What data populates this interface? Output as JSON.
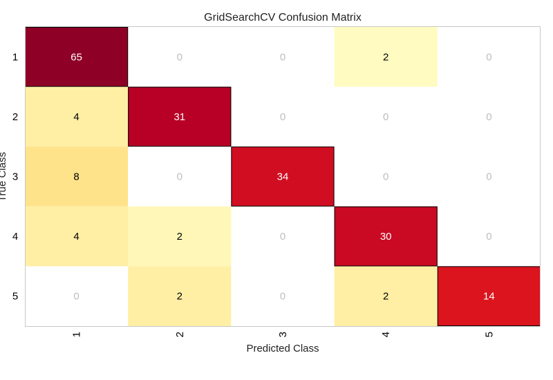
{
  "chart_data": {
    "type": "heatmap",
    "title": "GridSearchCV Confusion Matrix",
    "xlabel": "Predicted Class",
    "ylabel": "True Class",
    "x_categories": [
      "1",
      "2",
      "3",
      "4",
      "5"
    ],
    "y_categories": [
      "1",
      "2",
      "3",
      "4",
      "5"
    ],
    "values": [
      [
        65,
        0,
        0,
        2,
        0
      ],
      [
        4,
        31,
        0,
        0,
        0
      ],
      [
        8,
        0,
        34,
        0,
        0
      ],
      [
        4,
        2,
        0,
        30,
        0
      ],
      [
        0,
        2,
        0,
        2,
        14
      ]
    ],
    "colormap": "YlOrRd",
    "colors": {
      "zero_fill": "#ffffff",
      "zero_text": "#bdbdbd",
      "text_dark": "#000000",
      "text_light": "#ffffff",
      "diagonal_edge": "#000000",
      "frame": "#c8c8c8"
    }
  }
}
